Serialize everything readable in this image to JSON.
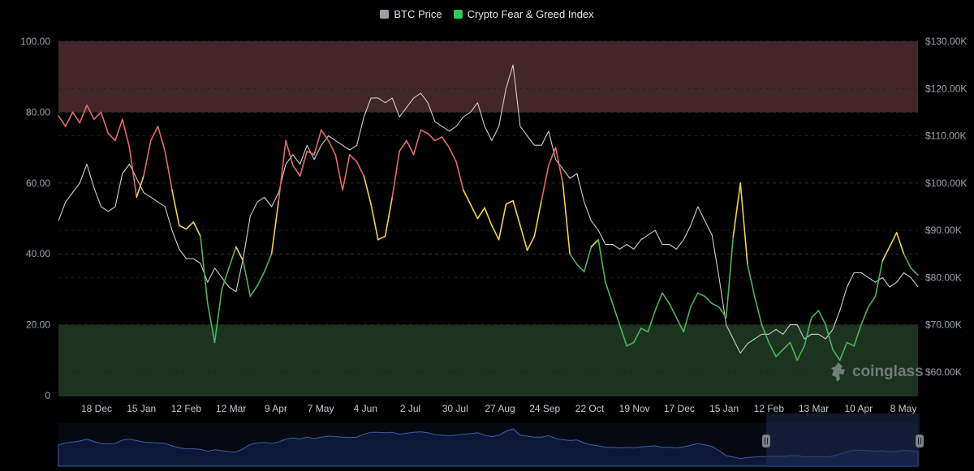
{
  "legend": {
    "btc_label": "BTC Price",
    "fg_label": "Crypto Fear & Greed Index",
    "btc_color": "#9aa0a6",
    "fg_color": "#34c759"
  },
  "watermark": {
    "text": "coinglass"
  },
  "colors": {
    "background": "#000000",
    "greed_zone": "#4a2a2d",
    "fear_zone": "#1f3a22",
    "greed_line": "#e26b6b",
    "neutral_line": "#f1d154",
    "fear_line": "#4fb35a",
    "price_line": "#cfcfcf",
    "navigator_line": "#3d5fa8",
    "navigator_window": "#1f2d55"
  },
  "chart_data": {
    "type": "line",
    "x_tick_labels": [
      "18 Dec",
      "15 Jan",
      "12 Feb",
      "12 Mar",
      "9 Apr",
      "7 May",
      "4 Jun",
      "2 Jul",
      "30 Jul",
      "27 Aug",
      "24 Sep",
      "22 Oct",
      "19 Nov",
      "17 Dec",
      "15 Jan",
      "12 Feb",
      "13 Mar",
      "10 Apr",
      "8 May"
    ],
    "y_left_ticks": [
      "100.00",
      "80.00",
      "60.00",
      "40.00",
      "20.00",
      "0"
    ],
    "y_left_range": [
      0,
      100
    ],
    "y_right_ticks": [
      "$130.00K",
      "$120.00K",
      "$110.00K",
      "$100.00K",
      "$90.00K",
      "$80.00K",
      "$70.00K",
      "$60.00K"
    ],
    "y_right_range": [
      55000,
      130000
    ],
    "greed_zone": [
      80,
      100
    ],
    "fear_zone": [
      0,
      20
    ],
    "grid": true,
    "series": [
      {
        "name": "BTC Price",
        "axis": "right",
        "values": [
          92000,
          96000,
          98000,
          100000,
          104000,
          99000,
          95000,
          94000,
          95000,
          102000,
          104000,
          101000,
          98000,
          97000,
          96000,
          95000,
          90000,
          86000,
          84000,
          84000,
          83000,
          79000,
          82000,
          80000,
          78000,
          77000,
          84000,
          93000,
          96000,
          97000,
          95000,
          98000,
          104000,
          106000,
          104000,
          108000,
          105000,
          108000,
          110000,
          109000,
          108000,
          107000,
          108000,
          114000,
          118000,
          118000,
          117000,
          118000,
          114000,
          116000,
          118000,
          119000,
          117000,
          113000,
          112000,
          111000,
          112000,
          114000,
          115000,
          117000,
          112000,
          109000,
          112000,
          120000,
          125000,
          112000,
          110000,
          108000,
          108000,
          111000,
          105000,
          103000,
          101000,
          102000,
          96000,
          92000,
          90000,
          87000,
          87000,
          86000,
          87000,
          86000,
          88000,
          89000,
          90000,
          87000,
          87000,
          86000,
          88000,
          91000,
          95000,
          92000,
          89000,
          80000,
          70000,
          67000,
          64000,
          66000,
          67000,
          68000,
          68000,
          69000,
          68000,
          70000,
          70000,
          67000,
          68000,
          68000,
          67000,
          69000,
          73000,
          78000,
          81000,
          81000,
          80000,
          79000,
          80000,
          78000,
          79000,
          81000,
          80000,
          78000
        ]
      },
      {
        "name": "Crypto Fear & Greed Index",
        "axis": "left",
        "values": [
          79,
          76,
          80,
          77,
          82,
          78,
          80,
          74,
          72,
          78,
          70,
          56,
          62,
          72,
          76,
          69,
          58,
          48,
          47,
          49,
          45,
          26,
          15,
          30,
          36,
          42,
          38,
          28,
          31,
          35,
          40,
          55,
          72,
          65,
          62,
          69,
          68,
          75,
          72,
          68,
          58,
          68,
          66,
          62,
          54,
          44,
          45,
          56,
          69,
          72,
          68,
          75,
          74,
          72,
          73,
          70,
          66,
          58,
          54,
          50,
          53,
          48,
          44,
          54,
          55,
          48,
          41,
          45,
          55,
          65,
          70,
          60,
          40,
          37,
          35,
          42,
          44,
          32,
          26,
          20,
          14,
          15,
          19,
          18,
          24,
          29,
          26,
          22,
          18,
          25,
          29,
          28,
          26,
          25,
          22,
          45,
          60,
          37,
          28,
          20,
          15,
          11,
          13,
          15,
          10,
          14,
          22,
          24,
          20,
          13,
          10,
          15,
          14,
          20,
          25,
          28,
          38,
          42,
          46,
          40,
          36,
          34
        ]
      }
    ]
  }
}
